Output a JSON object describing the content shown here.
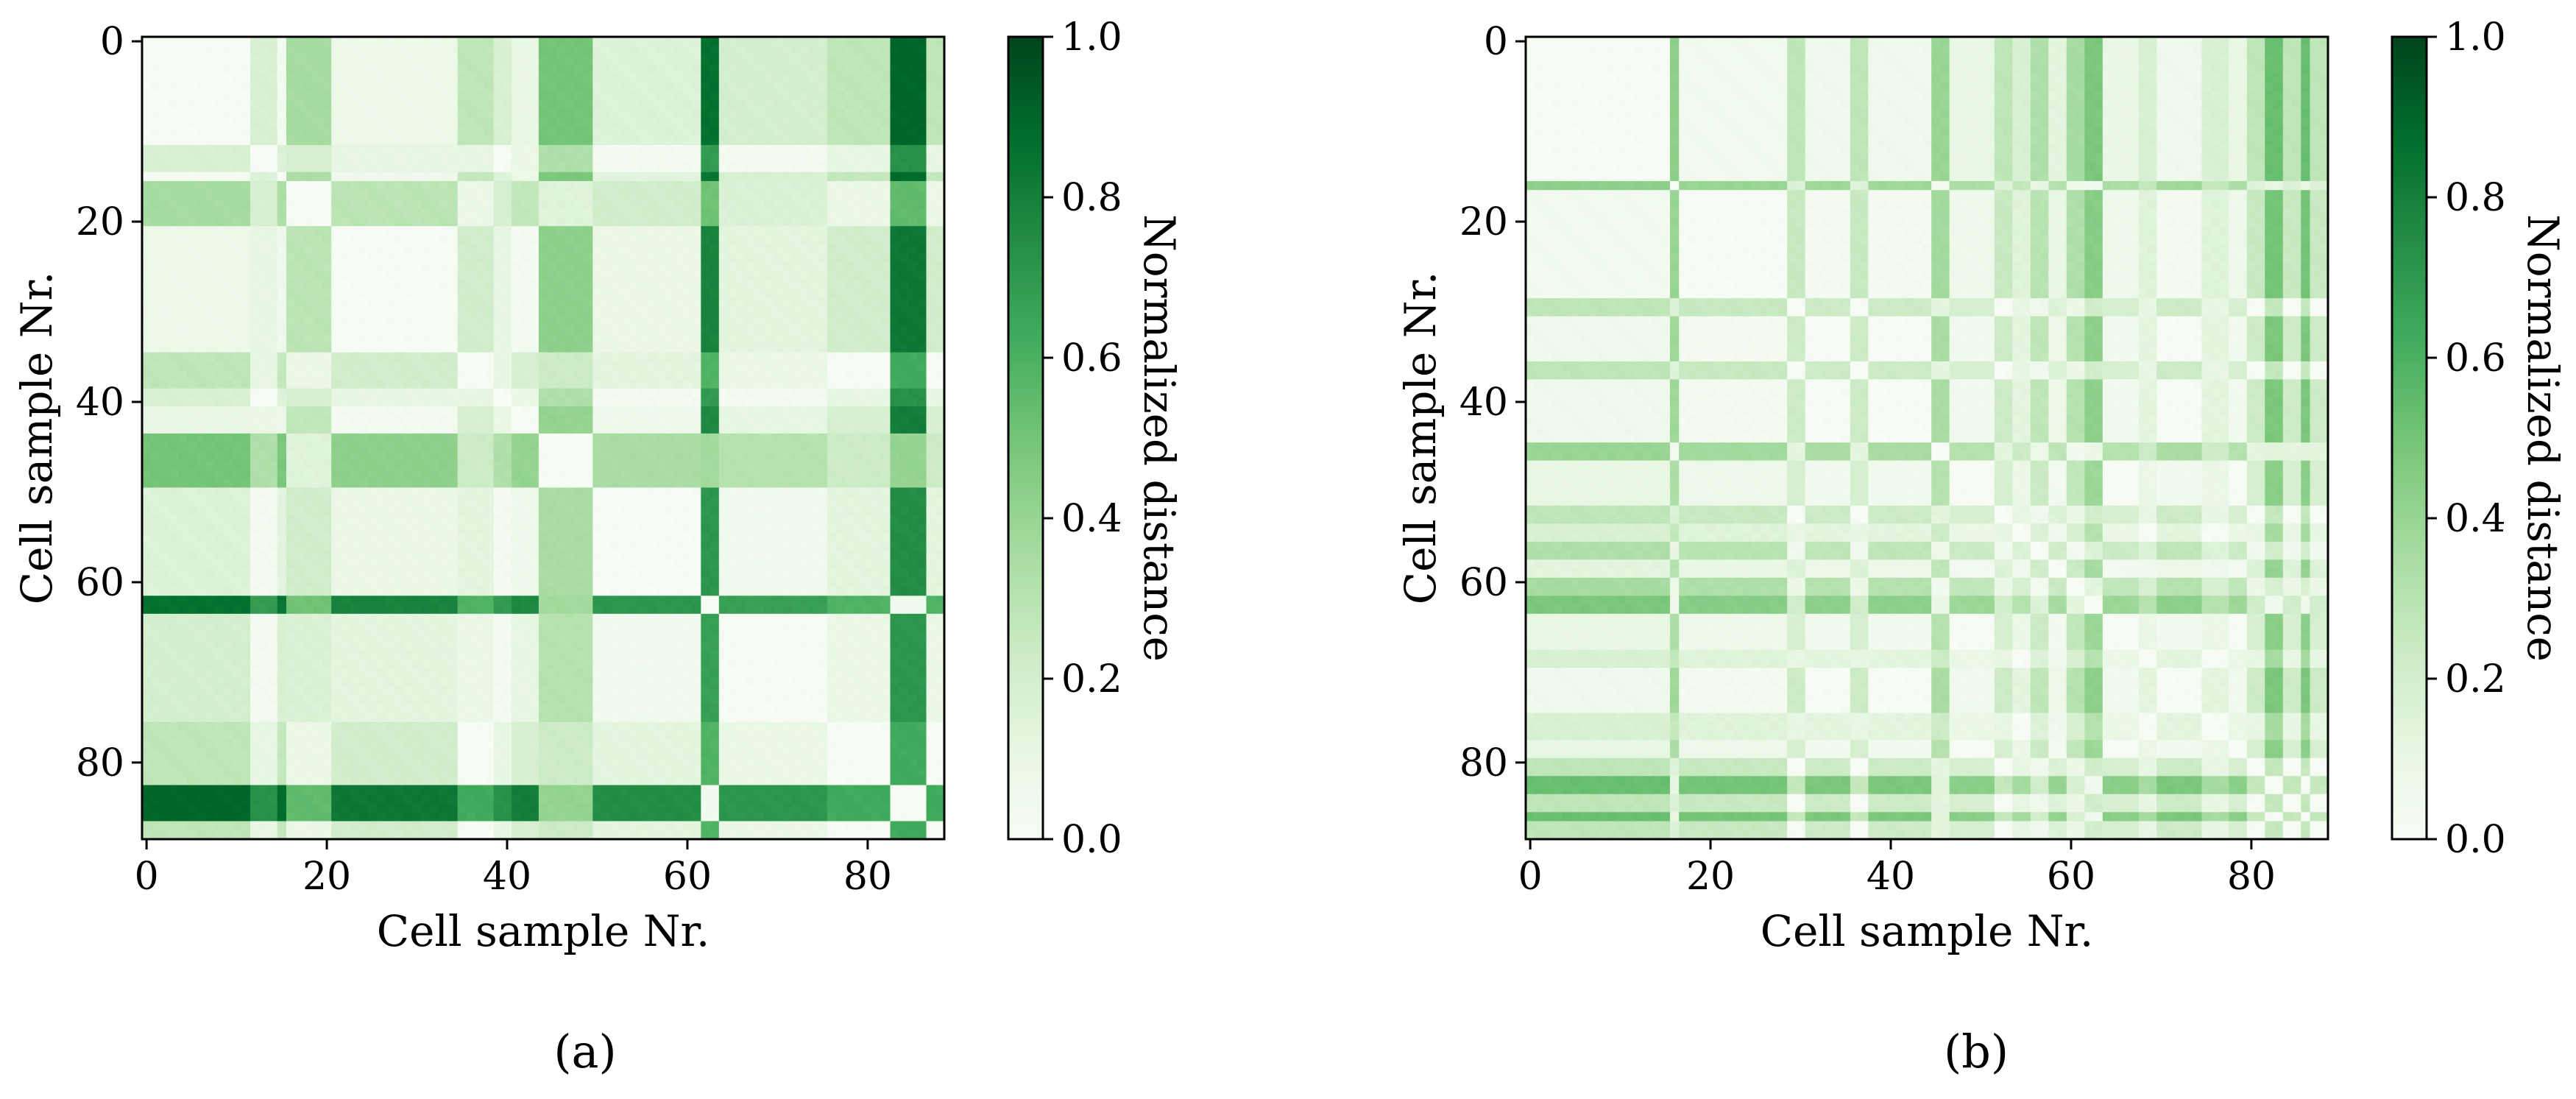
{
  "colors": {
    "cmap": [
      "#f7fcf5",
      "#e5f5e0",
      "#c7e9c0",
      "#a1d99b",
      "#74c476",
      "#41ab5d",
      "#238b45",
      "#006d2c",
      "#00441b"
    ]
  },
  "chart_data": [
    {
      "type": "heatmap",
      "panel_label": "(a)",
      "xlabel": "Cell sample Nr.",
      "ylabel": "Cell sample Nr.",
      "xticks": [
        0,
        20,
        40,
        60,
        80
      ],
      "yticks": [
        0,
        20,
        40,
        60,
        80
      ],
      "n_samples": 89,
      "xlim": [
        -0.5,
        88.5
      ],
      "ylim": [
        88.5,
        -0.5
      ],
      "colorbar": {
        "label": "Normalized distance",
        "range": [
          0,
          1
        ],
        "ticks": [
          "0.0",
          "0.2",
          "0.4",
          "0.6",
          "0.8",
          "1.0"
        ]
      },
      "profile_segments": [
        {
          "from": 0,
          "to": 11,
          "value": 0.03
        },
        {
          "from": 12,
          "to": 14,
          "value": 0.2
        },
        {
          "from": 15,
          "to": 15,
          "value": 0.05
        },
        {
          "from": 16,
          "to": 20,
          "value": 0.38
        },
        {
          "from": 21,
          "to": 34,
          "value": 0.1
        },
        {
          "from": 35,
          "to": 38,
          "value": 0.3
        },
        {
          "from": 39,
          "to": 40,
          "value": 0.2
        },
        {
          "from": 41,
          "to": 43,
          "value": 0.12
        },
        {
          "from": 44,
          "to": 49,
          "value": 0.52
        },
        {
          "from": 50,
          "to": 61,
          "value": 0.18
        },
        {
          "from": 62,
          "to": 63,
          "value": 0.88
        },
        {
          "from": 64,
          "to": 75,
          "value": 0.22
        },
        {
          "from": 76,
          "to": 82,
          "value": 0.3
        },
        {
          "from": 83,
          "to": 86,
          "value": 0.92
        },
        {
          "from": 87,
          "to": 88,
          "value": 0.3
        }
      ]
    },
    {
      "type": "heatmap",
      "panel_label": "(b)",
      "xlabel": "Cell sample Nr.",
      "ylabel": "Cell sample Nr.",
      "xticks": [
        0,
        20,
        40,
        60,
        80
      ],
      "yticks": [
        0,
        20,
        40,
        60,
        80
      ],
      "n_samples": 89,
      "xlim": [
        -0.5,
        88.5
      ],
      "ylim": [
        88.5,
        -0.5
      ],
      "colorbar": {
        "label": "Normalized distance",
        "range": [
          0,
          1
        ],
        "ticks": [
          "0.0",
          "0.2",
          "0.4",
          "0.6",
          "0.8",
          "1.0"
        ]
      },
      "profile_segments": [
        {
          "from": 0,
          "to": 15,
          "value": 0.03
        },
        {
          "from": 16,
          "to": 16,
          "value": 0.45
        },
        {
          "from": 17,
          "to": 28,
          "value": 0.06
        },
        {
          "from": 29,
          "to": 30,
          "value": 0.3
        },
        {
          "from": 31,
          "to": 35,
          "value": 0.08
        },
        {
          "from": 36,
          "to": 37,
          "value": 0.3
        },
        {
          "from": 38,
          "to": 44,
          "value": 0.08
        },
        {
          "from": 45,
          "to": 46,
          "value": 0.42
        },
        {
          "from": 47,
          "to": 51,
          "value": 0.12
        },
        {
          "from": 52,
          "to": 53,
          "value": 0.3
        },
        {
          "from": 54,
          "to": 55,
          "value": 0.2
        },
        {
          "from": 56,
          "to": 57,
          "value": 0.35
        },
        {
          "from": 58,
          "to": 59,
          "value": 0.15
        },
        {
          "from": 60,
          "to": 61,
          "value": 0.38
        },
        {
          "from": 62,
          "to": 63,
          "value": 0.5
        },
        {
          "from": 64,
          "to": 67,
          "value": 0.12
        },
        {
          "from": 68,
          "to": 69,
          "value": 0.2
        },
        {
          "from": 70,
          "to": 74,
          "value": 0.08
        },
        {
          "from": 75,
          "to": 77,
          "value": 0.2
        },
        {
          "from": 78,
          "to": 79,
          "value": 0.12
        },
        {
          "from": 80,
          "to": 81,
          "value": 0.3
        },
        {
          "from": 82,
          "to": 83,
          "value": 0.55
        },
        {
          "from": 84,
          "to": 85,
          "value": 0.3
        },
        {
          "from": 86,
          "to": 86,
          "value": 0.55
        },
        {
          "from": 87,
          "to": 88,
          "value": 0.3
        }
      ]
    }
  ]
}
